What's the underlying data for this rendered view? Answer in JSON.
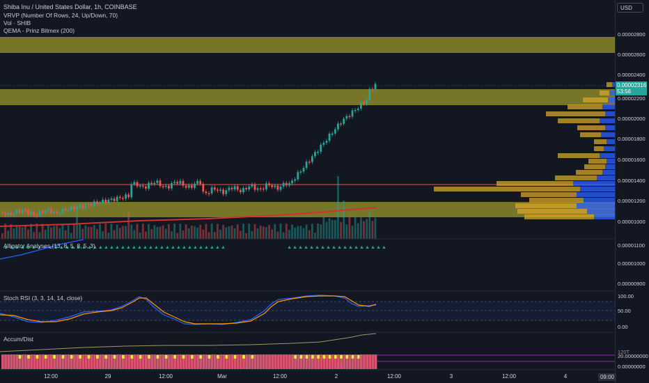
{
  "header": {
    "title": "Shiba Inu / United States Dollar, 1h, COINBASE",
    "indicators": [
      "VRVP (Number Of Rows, 24, Up/Down, 70)",
      "Vol · SHIB",
      "QEMA - Prinz Bitmex (200)"
    ]
  },
  "currency_button": "USD",
  "price_tag": {
    "price": "0.00002316",
    "countdown": "53:56"
  },
  "price_axis": [
    "0.00002800",
    "0.00002600",
    "0.00002400",
    "0.00002200",
    "0.00002000",
    "0.00001800",
    "0.00001600",
    "0.00001400",
    "0.00001200",
    "0.00001000"
  ],
  "alligator": {
    "label": "Alligator Analyses (13, 8, 5, 8, 5, 3)",
    "axis": [
      "0.00001100",
      "0.00001000",
      "0.00000900"
    ]
  },
  "stoch": {
    "label": "Stoch RSI (3, 3, 14, 14, close)",
    "axis": [
      "100.00",
      "50.00",
      "0.00"
    ]
  },
  "accum": {
    "label": "Accum/Dist",
    "axis": [
      "20.00000000",
      "0.00000000"
    ],
    "top_partial": "120T"
  },
  "time_axis": [
    "12:00",
    "29",
    "12:00",
    "Mar",
    "12:00",
    "2",
    "12:00",
    "3",
    "12:00",
    "4",
    "09:00"
  ],
  "colors": {
    "up": "#26a69a",
    "down": "#ef5350",
    "zone": "#9e9a2b",
    "volume_up": "#2962ff",
    "volume_down": "#d4a52c"
  }
}
